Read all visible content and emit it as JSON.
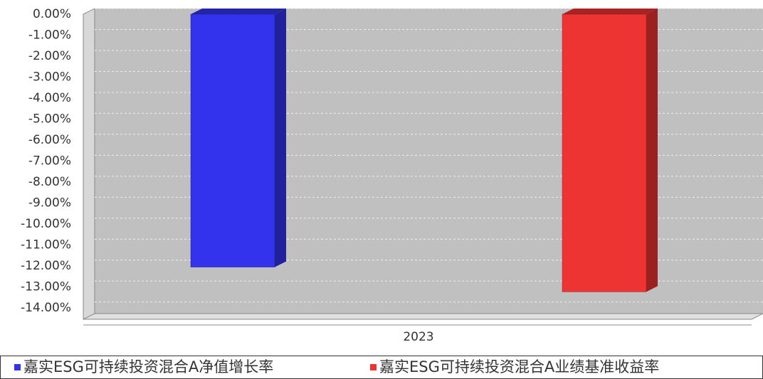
{
  "chart_data": {
    "type": "bar3d",
    "categories": [
      "2023"
    ],
    "series": [
      {
        "name": "嘉实ESG可持续投资混合A净值增长率",
        "color": "#3333ee",
        "values": [
          -12.06
        ]
      },
      {
        "name": "嘉实ESG可持续投资混合A业绩基准收益率",
        "color": "#ee3333",
        "values": [
          -13.24
        ]
      }
    ],
    "ylim": [
      -14.55,
      0
    ],
    "yticks": [
      {
        "value": 0,
        "label": "0.00%"
      },
      {
        "value": -1,
        "label": "-1.00%"
      },
      {
        "value": -2,
        "label": "-2.00%"
      },
      {
        "value": -3,
        "label": "-3.00%"
      },
      {
        "value": -4,
        "label": "-4.00%"
      },
      {
        "value": -5,
        "label": "-5.00%"
      },
      {
        "value": -6,
        "label": "-6.00%"
      },
      {
        "value": -7,
        "label": "-7.00%"
      },
      {
        "value": -8,
        "label": "-8.00%"
      },
      {
        "value": -9,
        "label": "-9.00%"
      },
      {
        "value": -10,
        "label": "-10.00%"
      },
      {
        "value": -11,
        "label": "-11.00%"
      },
      {
        "value": -12,
        "label": "-12.00%"
      },
      {
        "value": -13,
        "label": "-13.00%"
      },
      {
        "value": -14,
        "label": "-14.00%"
      }
    ],
    "grid": true
  }
}
